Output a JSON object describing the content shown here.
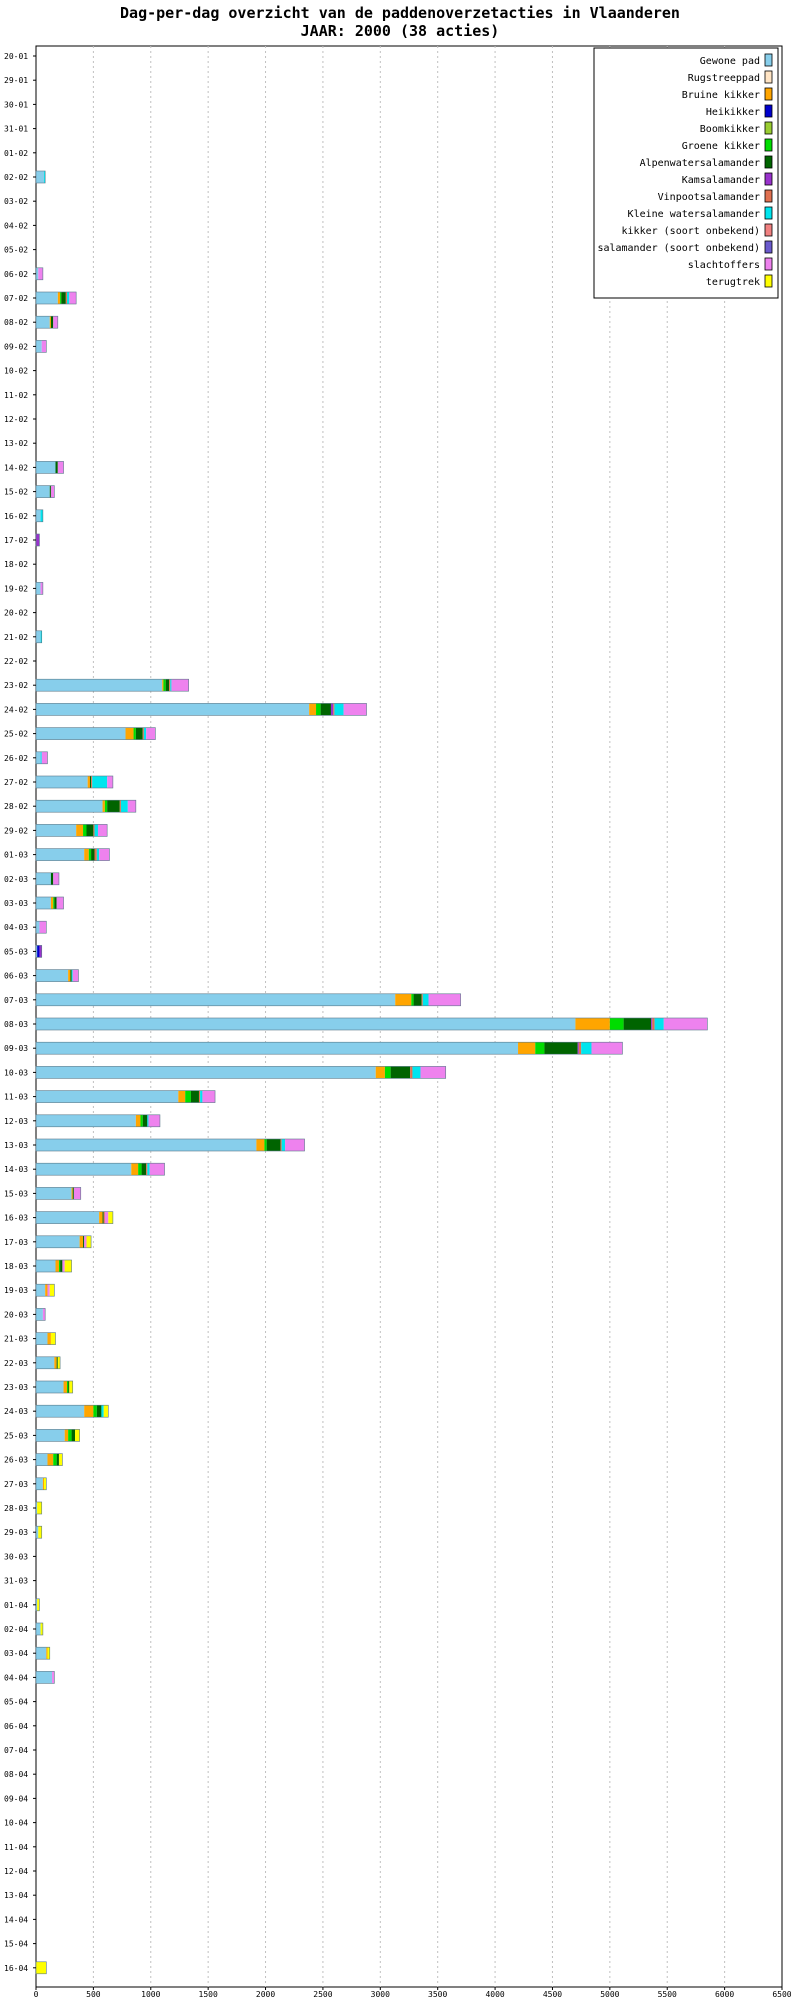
{
  "chart_data": {
    "type": "bar",
    "orientation": "horizontal",
    "stacked": true,
    "title": "Dag-per-dag overzicht van de paddenoverzetacties in Vlaanderen",
    "subtitle": "JAAR: 2000 (38 acties)",
    "xlim": [
      0,
      6500
    ],
    "xticks": [
      0,
      500,
      1000,
      1500,
      2000,
      2500,
      3000,
      3500,
      4000,
      4500,
      5000,
      5500,
      6000,
      6500
    ],
    "grid": true,
    "legend_position": "top-right",
    "categories": [
      "20-01",
      "29-01",
      "30-01",
      "31-01",
      "01-02",
      "02-02",
      "03-02",
      "04-02",
      "05-02",
      "06-02",
      "07-02",
      "08-02",
      "09-02",
      "10-02",
      "11-02",
      "12-02",
      "13-02",
      "14-02",
      "15-02",
      "16-02",
      "17-02",
      "18-02",
      "19-02",
      "20-02",
      "21-02",
      "22-02",
      "23-02",
      "24-02",
      "25-02",
      "26-02",
      "27-02",
      "28-02",
      "29-02",
      "01-03",
      "02-03",
      "03-03",
      "04-03",
      "05-03",
      "06-03",
      "07-03",
      "08-03",
      "09-03",
      "10-03",
      "11-03",
      "12-03",
      "13-03",
      "14-03",
      "15-03",
      "16-03",
      "17-03",
      "18-03",
      "19-03",
      "20-03",
      "21-03",
      "22-03",
      "23-03",
      "24-03",
      "25-03",
      "26-03",
      "27-03",
      "28-03",
      "29-03",
      "30-03",
      "31-03",
      "01-04",
      "02-04",
      "03-04",
      "04-04",
      "05-04",
      "06-04",
      "07-04",
      "08-04",
      "09-04",
      "10-04",
      "11-04",
      "12-04",
      "13-04",
      "14-04",
      "15-04",
      "16-04"
    ],
    "series": [
      {
        "name": "Gewone pad",
        "color": "#87ceeb",
        "values": [
          0,
          0,
          0,
          0,
          0,
          70,
          0,
          0,
          0,
          20,
          190,
          120,
          50,
          0,
          0,
          0,
          0,
          170,
          120,
          40,
          0,
          0,
          40,
          0,
          40,
          0,
          1100,
          2380,
          780,
          40,
          450,
          580,
          350,
          420,
          130,
          130,
          30,
          10,
          280,
          3130,
          4700,
          4200,
          2960,
          1240,
          870,
          1920,
          830,
          310,
          550,
          380,
          170,
          80,
          60,
          100,
          160,
          240,
          420,
          250,
          100,
          60,
          10,
          20,
          0,
          0,
          10,
          40,
          90,
          140,
          0,
          0,
          0,
          0,
          0,
          0,
          0,
          0,
          0,
          0,
          0,
          0
        ]
      },
      {
        "name": "Rugstreeppad",
        "color": "#ffe4c4",
        "values": [
          0,
          0,
          0,
          0,
          0,
          0,
          0,
          0,
          0,
          0,
          0,
          0,
          0,
          0,
          0,
          0,
          0,
          0,
          0,
          0,
          0,
          0,
          0,
          0,
          0,
          0,
          0,
          0,
          0,
          0,
          0,
          0,
          0,
          0,
          0,
          0,
          0,
          0,
          0,
          0,
          0,
          0,
          0,
          0,
          0,
          0,
          0,
          0,
          0,
          0,
          0,
          0,
          0,
          0,
          0,
          0,
          0,
          0,
          0,
          0,
          0,
          0,
          0,
          0,
          0,
          0,
          0,
          0,
          0,
          0,
          0,
          0,
          0,
          0,
          0,
          0,
          0,
          0,
          0,
          0
        ]
      },
      {
        "name": "Bruine kikker",
        "color": "#ffa500",
        "values": [
          0,
          0,
          0,
          0,
          0,
          0,
          0,
          0,
          0,
          0,
          20,
          10,
          0,
          0,
          0,
          0,
          0,
          0,
          0,
          0,
          0,
          0,
          0,
          0,
          0,
          0,
          10,
          60,
          70,
          0,
          20,
          20,
          60,
          40,
          0,
          20,
          0,
          0,
          20,
          140,
          300,
          150,
          80,
          60,
          40,
          70,
          60,
          10,
          30,
          30,
          30,
          20,
          0,
          30,
          20,
          30,
          80,
          30,
          50,
          10,
          0,
          0,
          0,
          0,
          0,
          0,
          10,
          0,
          0,
          0,
          0,
          0,
          0,
          0,
          0,
          0,
          0,
          0,
          0,
          0
        ]
      },
      {
        "name": "Heikikker",
        "color": "#0000cd",
        "values": [
          0,
          0,
          0,
          0,
          0,
          0,
          0,
          0,
          0,
          0,
          0,
          0,
          0,
          0,
          0,
          0,
          0,
          0,
          0,
          0,
          0,
          0,
          0,
          0,
          0,
          0,
          0,
          0,
          0,
          0,
          0,
          0,
          0,
          0,
          0,
          0,
          0,
          20,
          0,
          0,
          0,
          0,
          0,
          0,
          0,
          0,
          0,
          0,
          0,
          0,
          0,
          0,
          0,
          0,
          0,
          0,
          0,
          0,
          0,
          0,
          0,
          0,
          0,
          0,
          0,
          0,
          0,
          0,
          0,
          0,
          0,
          0,
          0,
          0,
          0,
          0,
          0,
          0,
          0,
          0
        ]
      },
      {
        "name": "Boomkikker",
        "color": "#9acd32",
        "values": [
          0,
          0,
          0,
          0,
          0,
          0,
          0,
          0,
          0,
          0,
          0,
          0,
          0,
          0,
          0,
          0,
          0,
          0,
          0,
          0,
          0,
          0,
          0,
          0,
          0,
          0,
          0,
          0,
          0,
          0,
          0,
          0,
          0,
          0,
          0,
          0,
          0,
          0,
          0,
          0,
          0,
          0,
          0,
          0,
          0,
          0,
          0,
          0,
          0,
          0,
          0,
          0,
          0,
          0,
          0,
          0,
          0,
          0,
          0,
          0,
          0,
          0,
          0,
          0,
          0,
          0,
          0,
          0,
          0,
          0,
          0,
          0,
          0,
          0,
          0,
          0,
          0,
          0,
          0,
          0
        ]
      },
      {
        "name": "Groene kikker",
        "color": "#00dd00",
        "values": [
          0,
          0,
          0,
          0,
          0,
          0,
          0,
          0,
          0,
          0,
          10,
          0,
          0,
          0,
          0,
          0,
          0,
          0,
          0,
          0,
          0,
          0,
          0,
          0,
          0,
          0,
          20,
          40,
          20,
          0,
          0,
          20,
          30,
          20,
          0,
          10,
          0,
          0,
          0,
          20,
          120,
          80,
          50,
          50,
          20,
          20,
          30,
          0,
          0,
          0,
          10,
          0,
          0,
          0,
          0,
          10,
          30,
          30,
          30,
          0,
          0,
          0,
          0,
          0,
          0,
          0,
          0,
          0,
          0,
          0,
          0,
          0,
          0,
          0,
          0,
          0,
          0,
          0,
          0,
          0
        ]
      },
      {
        "name": "Alpenwatersalamander",
        "color": "#006400",
        "values": [
          0,
          0,
          0,
          0,
          0,
          0,
          0,
          0,
          0,
          0,
          40,
          20,
          0,
          0,
          0,
          0,
          0,
          20,
          10,
          0,
          0,
          0,
          0,
          0,
          0,
          0,
          30,
          90,
          60,
          0,
          10,
          110,
          60,
          30,
          20,
          20,
          0,
          0,
          10,
          70,
          240,
          290,
          170,
          70,
          40,
          120,
          40,
          10,
          10,
          10,
          20,
          0,
          0,
          0,
          10,
          10,
          40,
          30,
          20,
          0,
          0,
          0,
          0,
          0,
          0,
          0,
          0,
          0,
          0,
          0,
          0,
          0,
          0,
          0,
          0,
          0,
          0,
          0,
          0,
          0
        ]
      },
      {
        "name": "Kamsalamander",
        "color": "#9932cc",
        "values": [
          0,
          0,
          0,
          0,
          0,
          0,
          0,
          0,
          0,
          0,
          0,
          0,
          0,
          0,
          0,
          0,
          0,
          0,
          0,
          0,
          30,
          0,
          0,
          0,
          0,
          0,
          0,
          20,
          0,
          0,
          0,
          0,
          0,
          0,
          0,
          0,
          0,
          20,
          0,
          0,
          10,
          10,
          0,
          0,
          0,
          0,
          0,
          0,
          0,
          0,
          0,
          0,
          0,
          0,
          0,
          0,
          0,
          0,
          0,
          0,
          0,
          0,
          0,
          0,
          0,
          0,
          0,
          0,
          0,
          0,
          0,
          0,
          0,
          0,
          0,
          0,
          0,
          0,
          0,
          0
        ]
      },
      {
        "name": "Vinpootsalamander",
        "color": "#e07050",
        "values": [
          0,
          0,
          0,
          0,
          0,
          0,
          0,
          0,
          0,
          0,
          10,
          0,
          0,
          0,
          0,
          0,
          0,
          0,
          0,
          0,
          0,
          0,
          0,
          0,
          0,
          0,
          10,
          10,
          10,
          0,
          10,
          10,
          10,
          20,
          0,
          0,
          0,
          0,
          0,
          10,
          20,
          20,
          20,
          10,
          0,
          10,
          10,
          0,
          10,
          0,
          0,
          0,
          0,
          0,
          0,
          0,
          0,
          0,
          0,
          0,
          0,
          0,
          0,
          0,
          0,
          0,
          0,
          0,
          0,
          0,
          0,
          0,
          0,
          0,
          0,
          0,
          0,
          0,
          0,
          0
        ]
      },
      {
        "name": "Kleine watersalamander",
        "color": "#00e5ee",
        "values": [
          0,
          0,
          0,
          0,
          0,
          10,
          0,
          0,
          0,
          0,
          20,
          0,
          0,
          0,
          0,
          0,
          0,
          0,
          0,
          20,
          0,
          0,
          0,
          0,
          10,
          0,
          10,
          80,
          20,
          10,
          130,
          60,
          30,
          20,
          0,
          0,
          0,
          0,
          10,
          50,
          80,
          90,
          70,
          20,
          10,
          30,
          20,
          0,
          0,
          0,
          0,
          0,
          0,
          0,
          0,
          0,
          20,
          0,
          0,
          0,
          0,
          0,
          0,
          0,
          0,
          0,
          0,
          0,
          0,
          0,
          0,
          0,
          0,
          0,
          0,
          0,
          0,
          0,
          0,
          0
        ]
      },
      {
        "name": "kikker (soort onbekend)",
        "color": "#f08080",
        "values": [
          0,
          0,
          0,
          0,
          0,
          0,
          0,
          0,
          0,
          0,
          0,
          0,
          0,
          0,
          0,
          0,
          0,
          0,
          0,
          0,
          0,
          0,
          0,
          0,
          0,
          0,
          0,
          0,
          0,
          0,
          0,
          0,
          0,
          0,
          0,
          0,
          0,
          0,
          0,
          0,
          0,
          0,
          0,
          0,
          0,
          0,
          0,
          0,
          0,
          0,
          0,
          0,
          0,
          0,
          0,
          0,
          0,
          0,
          0,
          0,
          0,
          0,
          0,
          0,
          0,
          0,
          0,
          0,
          0,
          0,
          0,
          0,
          0,
          0,
          0,
          0,
          0,
          0,
          0,
          0
        ]
      },
      {
        "name": "salamander (soort onbekend)",
        "color": "#6a5acd",
        "values": [
          0,
          0,
          0,
          0,
          0,
          0,
          0,
          0,
          0,
          0,
          0,
          0,
          0,
          0,
          0,
          0,
          0,
          0,
          0,
          0,
          0,
          0,
          0,
          0,
          0,
          0,
          0,
          0,
          0,
          0,
          0,
          0,
          0,
          0,
          0,
          0,
          0,
          0,
          0,
          0,
          0,
          0,
          0,
          0,
          0,
          0,
          0,
          0,
          0,
          0,
          0,
          0,
          0,
          0,
          0,
          0,
          0,
          0,
          0,
          0,
          0,
          0,
          0,
          0,
          0,
          0,
          0,
          0,
          0,
          0,
          0,
          0,
          0,
          0,
          0,
          0,
          0,
          0,
          0,
          0
        ]
      },
      {
        "name": "slachtoffers",
        "color": "#ee82ee",
        "values": [
          0,
          0,
          0,
          0,
          0,
          0,
          0,
          0,
          0,
          40,
          60,
          40,
          40,
          0,
          0,
          0,
          0,
          50,
          30,
          0,
          0,
          0,
          20,
          0,
          0,
          0,
          150,
          200,
          80,
          50,
          50,
          70,
          80,
          90,
          50,
          60,
          60,
          0,
          50,
          280,
          380,
          270,
          220,
          110,
          100,
          170,
          130,
          60,
          30,
          20,
          20,
          20,
          20,
          0,
          0,
          0,
          0,
          0,
          0,
          0,
          0,
          0,
          0,
          0,
          0,
          0,
          0,
          20,
          0,
          0,
          0,
          0,
          0,
          0,
          0,
          0,
          0,
          0,
          0,
          0
        ]
      },
      {
        "name": "terugtrek",
        "color": "#ffff00",
        "values": [
          0,
          0,
          0,
          0,
          0,
          0,
          0,
          0,
          0,
          0,
          0,
          0,
          0,
          0,
          0,
          0,
          0,
          0,
          0,
          0,
          0,
          0,
          0,
          0,
          0,
          0,
          0,
          0,
          0,
          0,
          0,
          0,
          0,
          0,
          0,
          0,
          0,
          0,
          0,
          0,
          0,
          0,
          0,
          0,
          0,
          0,
          0,
          0,
          40,
          40,
          60,
          40,
          0,
          40,
          20,
          30,
          40,
          40,
          30,
          20,
          40,
          30,
          0,
          0,
          20,
          20,
          20,
          0,
          0,
          0,
          0,
          0,
          0,
          0,
          0,
          0,
          0,
          0,
          0,
          90
        ]
      }
    ]
  }
}
